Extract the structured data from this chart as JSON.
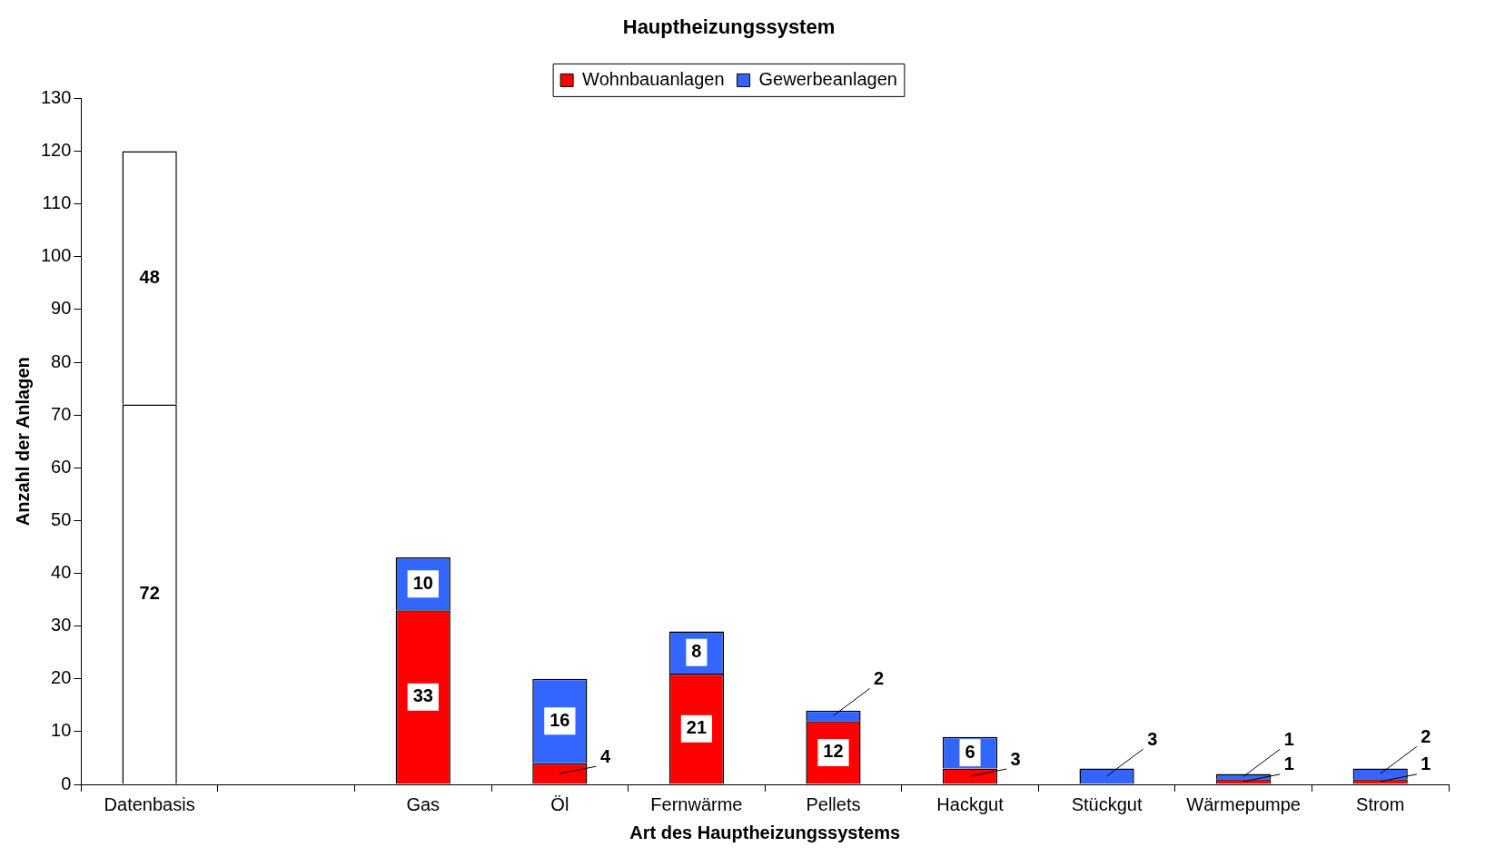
{
  "chart_data": {
    "type": "bar",
    "title": "Hauptheizungssystem",
    "xlabel": "Art des Hauptheizungssystems",
    "ylabel": "Anzahl der Anlagen",
    "categories": [
      "Datenbasis",
      null,
      "Gas",
      "Öl",
      "Fernwärme",
      "Pellets",
      "Hackgut",
      "Stückgut",
      "Wärmepumpe",
      "Strom"
    ],
    "series": [
      {
        "name": "Wohnbauanlagen",
        "color": "#ff0000",
        "colors": [
          "#ffffff",
          null,
          "#ff0000",
          "#ff0000",
          "#ff0000",
          "#ff0000",
          "#ff0000",
          "#ff0000",
          "#ff0000",
          "#ff0000"
        ],
        "values": [
          72,
          null,
          33,
          4,
          21,
          12,
          3,
          null,
          1,
          1
        ]
      },
      {
        "name": "Gewerbeanlagen",
        "color": "#3366ff",
        "colors": [
          "#ffffff",
          null,
          "#3366ff",
          "#3366ff",
          "#3366ff",
          "#3366ff",
          "#3366ff",
          "#3366ff",
          "#3366ff",
          "#3366ff"
        ],
        "values": [
          48,
          null,
          10,
          16,
          8,
          2,
          6,
          3,
          1,
          2
        ]
      }
    ],
    "stacked": true,
    "ylim": [
      0,
      130
    ],
    "yticks": [
      0,
      10,
      20,
      30,
      40,
      50,
      60,
      70,
      80,
      90,
      100,
      110,
      120,
      130
    ],
    "grid": false,
    "legend": "top",
    "data_labels": true
  }
}
